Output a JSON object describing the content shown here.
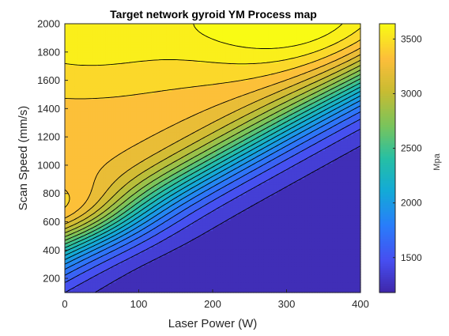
{
  "chart_data": {
    "type": "contour",
    "title": "Target network gyroid YM Process map",
    "xlabel": "Laser Power (W)",
    "ylabel": "Scan Speed (mm/s)",
    "colorbar_label": "Mpa",
    "colormap": "parula",
    "xlim": [
      0,
      400
    ],
    "ylim": [
      100,
      2000
    ],
    "xticks": [
      "0",
      "100",
      "200",
      "300",
      "400"
    ],
    "yticks": [
      "200",
      "400",
      "600",
      "800",
      "1000",
      "1200",
      "1400",
      "1600",
      "1800",
      "2000"
    ],
    "clim": [
      1180,
      3640
    ],
    "cbticks": [
      "1500",
      "2000",
      "2500",
      "3000",
      "3500"
    ],
    "level_step": 123,
    "surface_samples": {
      "x": [
        0,
        100,
        200,
        300,
        400
      ],
      "y": [
        200,
        650,
        1000,
        1400,
        2000
      ],
      "z": [
        [
          1300,
          1280,
          1220,
          1200,
          1240
        ],
        [
          3500,
          2400,
          1700,
          1450,
          1380
        ],
        [
          3150,
          2980,
          2450,
          1950,
          1700
        ],
        [
          3050,
          3000,
          2880,
          2600,
          2300
        ],
        [
          3300,
          3350,
          3450,
          3600,
          3500
        ]
      ]
    }
  }
}
